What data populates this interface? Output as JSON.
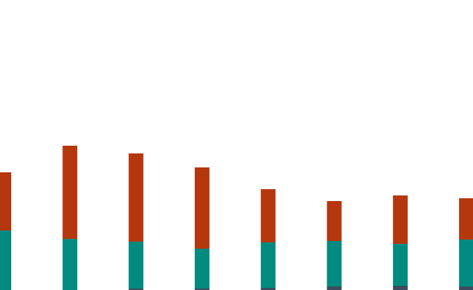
{
  "chart_data": {
    "type": "bar",
    "stacked": true,
    "grid": false,
    "categories": [
      "",
      "",
      "",
      "",
      "",
      "",
      "",
      ""
    ],
    "series": [
      {
        "color": "#3d4b5e",
        "values": [
          0,
          0,
          2,
          2,
          3,
          5,
          6,
          5
        ]
      },
      {
        "color": "#008a80",
        "values": [
          85,
          73,
          67,
          57,
          65,
          65,
          60,
          67
        ]
      },
      {
        "color": "#b5370e",
        "values": [
          83,
          133,
          126,
          116,
          76,
          57,
          69,
          59
        ]
      }
    ],
    "ylim": [
      0,
      414
    ]
  }
}
